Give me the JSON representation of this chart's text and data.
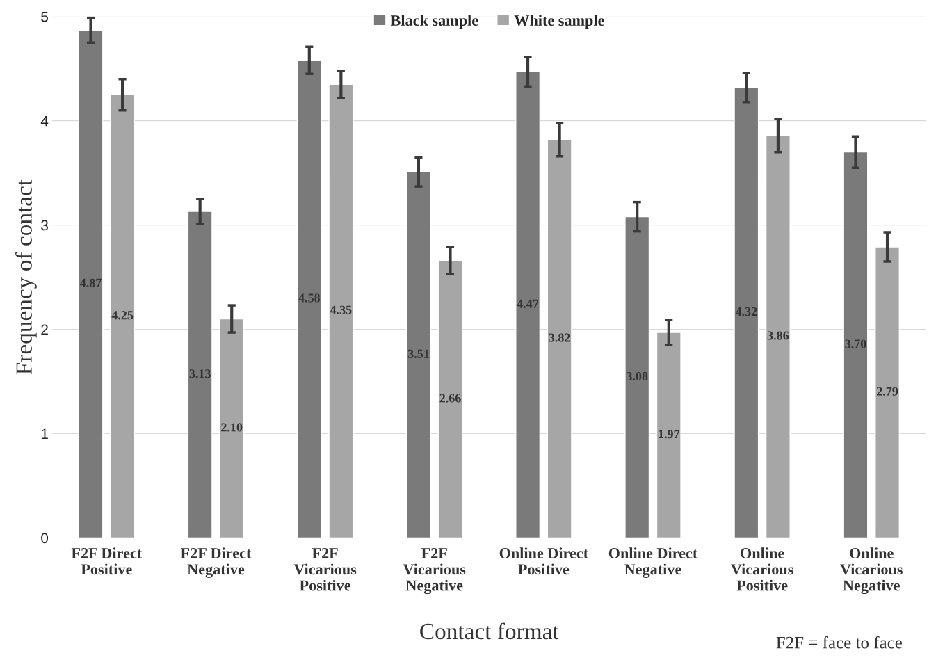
{
  "chart_data": {
    "type": "bar",
    "xlabel": "Contact format",
    "ylabel": "Frequency of contact",
    "categories": [
      "F2F Direct\nPositive",
      "F2F Direct\nNegative",
      "F2F\nVicarious\nPositive",
      "F2F\nVicarious\nNegative",
      "Online Direct\nPositive",
      "Online Direct\nNegative",
      "Online\nVicarious\nPositive",
      "Online\nVicarious\nNegative"
    ],
    "series": [
      {
        "name": "Black sample",
        "color": "#7a7a7a",
        "values": [
          4.87,
          3.13,
          4.58,
          3.51,
          4.47,
          3.08,
          4.32,
          3.7
        ],
        "value_labels": [
          "4.87",
          "3.13",
          "4.58",
          "3.51",
          "4.47",
          "3.08",
          "4.32",
          "3.70"
        ],
        "errors": [
          0.12,
          0.12,
          0.13,
          0.14,
          0.14,
          0.14,
          0.14,
          0.15
        ]
      },
      {
        "name": "White sample",
        "color": "#a6a6a6",
        "values": [
          4.25,
          2.1,
          4.35,
          2.66,
          3.82,
          1.97,
          3.86,
          2.79
        ],
        "value_labels": [
          "4.25",
          "2.10",
          "4.35",
          "2.66",
          "3.82",
          "1.97",
          "3.86",
          "2.79"
        ],
        "errors": [
          0.15,
          0.13,
          0.13,
          0.13,
          0.16,
          0.12,
          0.16,
          0.14
        ]
      }
    ],
    "ylim": [
      0,
      5
    ],
    "yticks": [
      0,
      1,
      2,
      3,
      4,
      5
    ],
    "grid": "y",
    "legend": "top",
    "annotations": [
      "F2F = face to face"
    ]
  }
}
